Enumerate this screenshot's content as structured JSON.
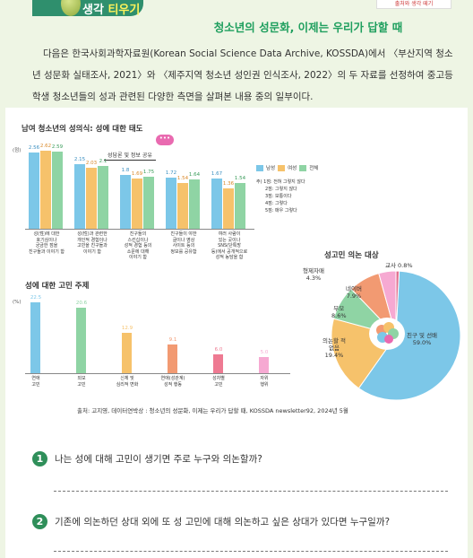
{
  "header": {
    "banner_prefix": "생각",
    "banner_accent": "티우기",
    "corner_tag": "출처와 생각 떼기"
  },
  "title": "청소년의 성문화, 이제는 우리가 답할 때",
  "intro": "다음은 한국사회과학자료원(Korean Social Science Data Archive, KOSSDA)에서 〈부산지역 청소년 성문화 실태조사, 2021〉와 〈제주지역 청소년 성인권 인식조사, 2022〉의 두 자료를 선정하여 중고등학생 청소년들의 성과 관련된 다양한 측면을 살펴본 내용 중의 일부이다.",
  "chart1": {
    "title": "남여 청소년의 성의식: 성에 대한 태도",
    "unit": "(점)",
    "group_label": "성담론 및 정보 공유",
    "bubble": "•••",
    "legend": [
      {
        "label": "남성",
        "color": "#7cc7e8"
      },
      {
        "label": "여성",
        "color": "#f6c26b"
      },
      {
        "label": "전체",
        "color": "#8fd4a4"
      }
    ],
    "notes": [
      "주) 1점: 전혀 그렇지 않다",
      "2점: 그렇지 않다",
      "3점: 보통이다",
      "4점: 그렇다",
      "5점: 매우 그렇다"
    ]
  },
  "chart2": {
    "title": "성에 대한 고민 주제",
    "unit": "(%)"
  },
  "chart3": {
    "title": "성고민 의논 대상"
  },
  "chart_data": [
    {
      "type": "bar",
      "title": "남여 청소년의 성의식: 성에 대한 태도",
      "ylabel": "(점)",
      "categories": [
        [
          "성(性)에 대한",
          "호기심이나",
          "궁금한 점을",
          "친구들과 이야기 함"
        ],
        [
          "성(性)과 관련한",
          "개인적 경험이나",
          "고민을 친구들과",
          "이야기 함"
        ],
        [
          "친구들의",
          "스킨십이나",
          "성적 경험 등의",
          "소문에 대해",
          "이야기 함"
        ],
        [
          "친구들이 야한",
          "글이나 영상",
          "사이트 등의",
          "정보를 공유함"
        ],
        [
          "여러 사람이",
          "있는 곳이나",
          "SNS(단톡방",
          "등)에서 공개적으로",
          "성적 농담을 함"
        ]
      ],
      "series": [
        {
          "name": "남성",
          "values": [
            2.56,
            2.15,
            1.8,
            1.72,
            1.67
          ]
        },
        {
          "name": "여성",
          "values": [
            2.62,
            2.03,
            1.69,
            1.54,
            1.36
          ]
        },
        {
          "name": "전체",
          "values": [
            2.59,
            2.1,
            1.75,
            1.64,
            1.54
          ]
        }
      ],
      "value_labels": [
        [
          "2.56",
          "2.62",
          "2.59"
        ],
        [
          "2.15",
          "2.03",
          "2.1"
        ],
        [
          "1.8",
          "1.69",
          "1.75"
        ],
        [
          "1.72",
          "1.54",
          "1.64"
        ],
        [
          "1.67",
          "1.36",
          "1.54"
        ]
      ],
      "ylim": [
        0,
        3
      ],
      "legend_position": "right"
    },
    {
      "type": "bar",
      "title": "성에 대한 고민 주제",
      "ylabel": "(%)",
      "categories": [
        [
          "연애",
          "고민"
        ],
        [
          "외모",
          "고민"
        ],
        [
          "신체 및",
          "심리적 변화"
        ],
        [
          "연애(성관계)",
          "성적 행동"
        ],
        [
          "성차별",
          "고민"
        ],
        [
          "자위",
          "행위"
        ]
      ],
      "values": [
        22.5,
        20.6,
        12.9,
        9.1,
        6.0,
        5.0
      ],
      "value_labels": [
        "22.5",
        "20.6",
        "12.9",
        "9.1",
        "6.0",
        "5.0"
      ],
      "colors": [
        "#7cc7e8",
        "#8fd4a4",
        "#f6c26b",
        "#f29a72",
        "#ee7a92",
        "#f6a9d2"
      ],
      "ylim": [
        0,
        25
      ]
    },
    {
      "type": "pie",
      "title": "성고민 의논 대상",
      "categories": [
        "친구 및 선배",
        "의논할 적 없음",
        "부모",
        "네이버",
        "형제자매",
        "교사"
      ],
      "values": [
        59.0,
        19.4,
        8.6,
        7.9,
        4.3,
        0.8
      ],
      "labels": [
        [
          "친구 및 선배",
          "59.0%"
        ],
        [
          "의논할 적",
          "없음",
          "19.4%"
        ],
        [
          "부모",
          "8.6%"
        ],
        [
          "네이버",
          "7.9%"
        ],
        [
          "형제자매",
          "4.3%"
        ],
        [
          "교사 0.8%"
        ]
      ],
      "colors": [
        "#7cc7e8",
        "#f6c26b",
        "#8fd4a4",
        "#f29a72",
        "#f6a9d2",
        "#e07090"
      ]
    }
  ],
  "source": "출처: 고지영, 데이터연박상 : 청소년의 성문화, 이제는 우리가 답할 때, KOSSDA newsletter92, 2024년 5월",
  "questions": [
    {
      "num": "1",
      "text": "나는 성에 대해 고민이 생기면 주로 누구와 의논할까?"
    },
    {
      "num": "2",
      "text": "기존에 의논하던 상대 외에 또 성 고민에 대해 의논하고 싶은 상대가 있다면 누구일까?"
    }
  ]
}
